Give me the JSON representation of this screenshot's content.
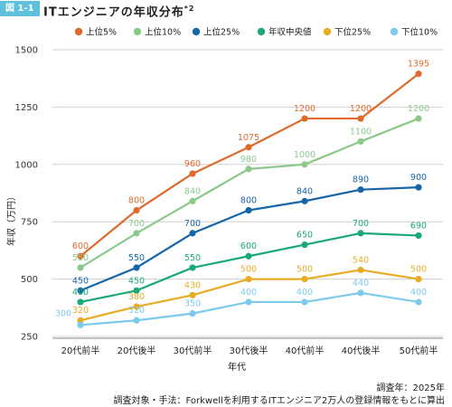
{
  "figure": {
    "badge": "図 1-1",
    "title": "ITエンジニアの年収分布",
    "title_sup": "*2"
  },
  "notes": {
    "survey_year": "調査年：2025年",
    "method": "調査対象・手法：Forkwellを利用するITエンジニア2万人の登録情報をもとに算出"
  },
  "chart_data": {
    "type": "line",
    "title": "ITエンジニアの年収分布",
    "xlabel": "年代",
    "ylabel": "年収（万円）",
    "categories": [
      "20代前半",
      "20代後半",
      "30代前半",
      "30代後半",
      "40代前半",
      "40代後半",
      "50代前半"
    ],
    "ylim": [
      250,
      1500
    ],
    "yticks": [
      250,
      500,
      750,
      1000,
      1250,
      1500
    ],
    "grid": true,
    "legend_position": "top",
    "series": [
      {
        "name": "上位5%",
        "color": "#e06a2b",
        "values": [
          600,
          800,
          960,
          1075,
          1200,
          1200,
          1395
        ]
      },
      {
        "name": "上位10%",
        "color": "#8bc98a",
        "values": [
          550,
          700,
          840,
          980,
          1000,
          1100,
          1200
        ]
      },
      {
        "name": "上位25%",
        "color": "#1565a8",
        "values": [
          450,
          550,
          700,
          800,
          840,
          890,
          900
        ]
      },
      {
        "name": "年収中央値",
        "color": "#1aa874",
        "values": [
          400,
          450,
          550,
          600,
          650,
          700,
          690
        ]
      },
      {
        "name": "下位25%",
        "color": "#e8ab24",
        "values": [
          320,
          380,
          430,
          500,
          500,
          540,
          500
        ]
      },
      {
        "name": "下位10%",
        "color": "#7ccbea",
        "values": [
          300,
          320,
          350,
          400,
          400,
          440,
          400
        ]
      }
    ]
  }
}
